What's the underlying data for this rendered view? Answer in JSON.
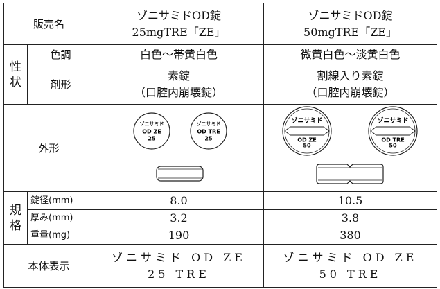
{
  "table": {
    "header": {
      "label": "販売名",
      "products": [
        [
          "ゾニサミドOD錠",
          "25mgTRE「ZE」"
        ],
        [
          "ゾニサミドOD錠",
          "50mgTRE「ZE」"
        ]
      ]
    },
    "properties": {
      "group": [
        "性",
        "状"
      ],
      "rows": [
        {
          "label": "色調",
          "values": [
            [
              "白色～帯黄白色"
            ],
            [
              "微黄白色～淡黄白色"
            ]
          ]
        },
        {
          "label": "剤形",
          "values": [
            [
              "素錠",
              "（口腔内崩壊錠）"
            ],
            [
              "割線入り素錠",
              "（口腔内崩壊錠）"
            ]
          ]
        }
      ]
    },
    "shape": {
      "label": "外形",
      "imprints": [
        [
          [
            "ゾニサミド",
            "OD ZE",
            "25"
          ],
          [
            "ゾニサミド",
            "OD TRE",
            "25"
          ]
        ],
        [
          [
            "ゾニサミド",
            "OD ZE",
            "50"
          ],
          [
            "ゾニサミド",
            "OD TRE",
            "50"
          ]
        ]
      ]
    },
    "specs": {
      "group": [
        "規",
        "格"
      ],
      "rows": [
        {
          "label": "錠径(mm)",
          "values": [
            "8.0",
            "10.5"
          ]
        },
        {
          "label": "厚み(mm)",
          "values": [
            "3.2",
            "3.8"
          ]
        },
        {
          "label": "重量(mg)",
          "values": [
            "190",
            "380"
          ]
        }
      ]
    },
    "marking": {
      "label": "本体表示",
      "values": [
        [
          "ゾニサミド OD ZE",
          "25 TRE"
        ],
        [
          "ゾニサミド OD ZE",
          "50 TRE"
        ]
      ]
    }
  }
}
